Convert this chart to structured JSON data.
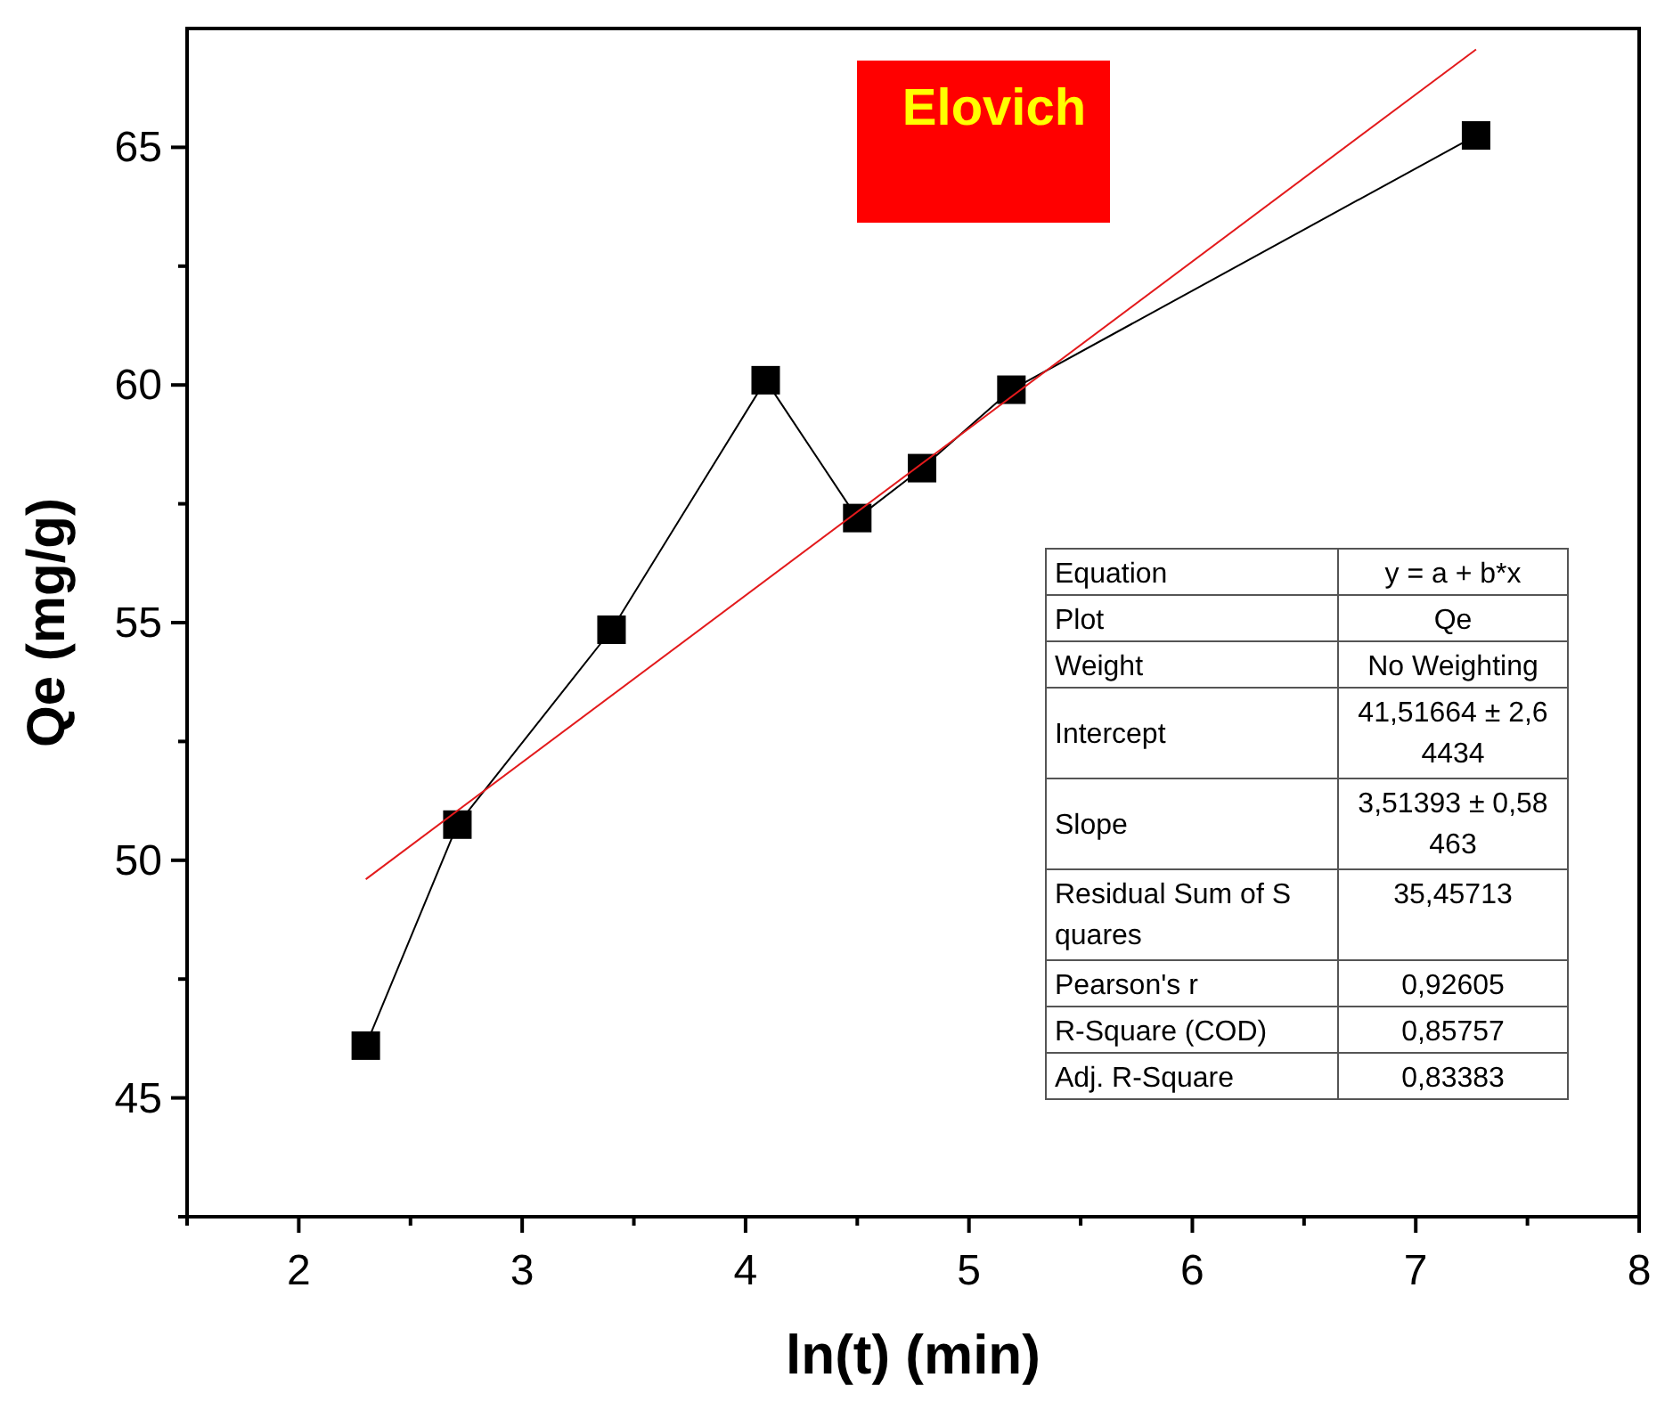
{
  "chart_data": {
    "type": "line",
    "xlabel": "ln(t) (min)",
    "ylabel": "Qe (mg/g)",
    "xlim": [
      1.5,
      8
    ],
    "ylim": [
      42.5,
      67.5
    ],
    "xticks": [
      {
        "value": 1.5,
        "label": null
      },
      2,
      {
        "value": 2.5,
        "label": null
      },
      3,
      {
        "value": 3.5,
        "label": null
      },
      4,
      {
        "value": 4.5,
        "label": null
      },
      5,
      {
        "value": 5.5,
        "label": null
      },
      6,
      {
        "value": 6.5,
        "label": null
      },
      7,
      {
        "value": 7.5,
        "label": null
      },
      8
    ],
    "yticks": [
      {
        "value": 42.5,
        "label": null
      },
      45,
      {
        "value": 47.5,
        "label": null
      },
      50,
      {
        "value": 52.5,
        "label": null
      },
      55,
      {
        "value": 57.5,
        "label": null
      },
      60,
      {
        "value": 62.5,
        "label": null
      },
      65
    ],
    "grid": false,
    "series": [
      {
        "color": "#000000",
        "marker": "square",
        "line_style": "solid",
        "x": [
          2.3,
          2.71,
          3.4,
          4.09,
          4.5,
          4.79,
          5.19,
          7.27
        ],
        "values": [
          46.1,
          50.75,
          54.85,
          60.1,
          57.2,
          58.25,
          59.9,
          65.25
        ]
      },
      {
        "color": "#e31a1c",
        "marker": "none",
        "line_style": "solid",
        "x": [
          2.3,
          7.27
        ],
        "values": [
          49.6,
          67.06
        ]
      }
    ],
    "annotations": [
      "Elovich",
      "Equation",
      "y = a + b*x",
      "Plot",
      "Qe",
      "Weight",
      "No Weighting",
      "Intercept",
      "41,51664 ± 2,64434",
      "Slope",
      "3,51393 ± 0,58463",
      "Residual Sum of Squares",
      "35,45713",
      "Pearson's r",
      "0,92605",
      "R-Square (COD)",
      "0,85757",
      "Adj. R-Square",
      "0,83383"
    ]
  }
}
